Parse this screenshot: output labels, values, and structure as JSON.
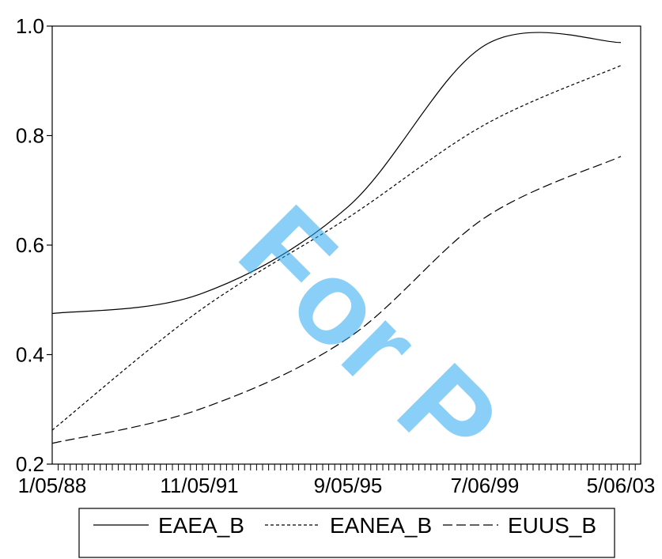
{
  "watermark": "For P",
  "chart_data": {
    "type": "line",
    "title": "",
    "xlabel": "",
    "ylabel": "",
    "ylim": [
      0.2,
      1.0
    ],
    "y_ticks": [
      "0.2",
      "0.4",
      "0.6",
      "0.8",
      "1.0"
    ],
    "x_tick_labels": [
      "1/05/88",
      "11/05/91",
      "9/05/95",
      "7/06/99",
      "5/06/03"
    ],
    "x": [
      "1/05/88",
      "11/05/91",
      "9/05/95",
      "7/06/99",
      "5/06/03"
    ],
    "legend_position": "bottom",
    "grid": false,
    "series": [
      {
        "name": "EAEA_B",
        "style": "solid",
        "values": [
          0.475,
          0.51,
          0.67,
          0.965,
          0.97
        ]
      },
      {
        "name": "EANEA_B",
        "style": "short-dash",
        "values": [
          0.262,
          0.48,
          0.65,
          0.82,
          0.928
        ]
      },
      {
        "name": "EUUS_B",
        "style": "long-dash",
        "values": [
          0.238,
          0.3,
          0.43,
          0.65,
          0.762
        ]
      }
    ]
  }
}
